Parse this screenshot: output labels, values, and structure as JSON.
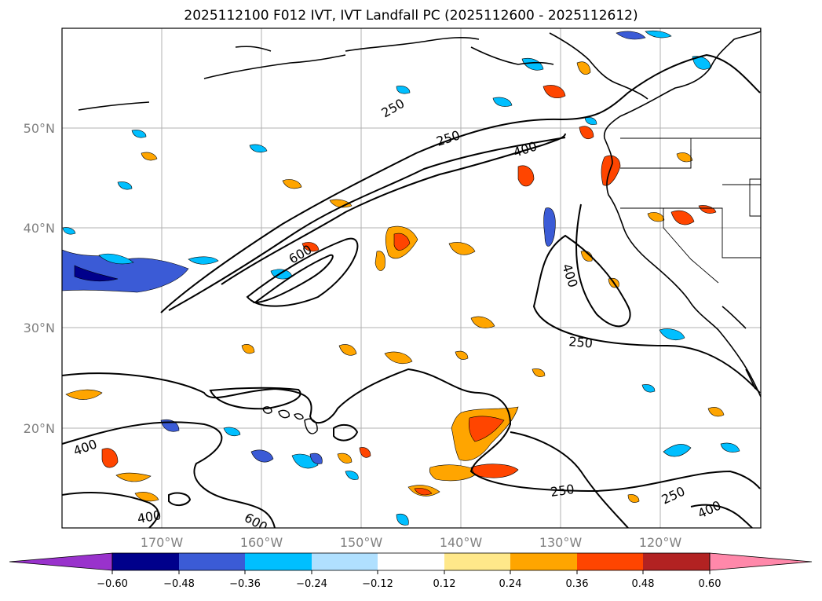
{
  "title": "2025112100 F012 IVT, IVT Landfall PC (2025112600 - 2025112612)",
  "map": {
    "lat_labels": [
      "50°N",
      "40°N",
      "30°N",
      "20°N"
    ],
    "lon_labels": [
      "170°W",
      "160°W",
      "150°W",
      "140°W",
      "130°W",
      "120°W"
    ],
    "contour_labels": [
      "250",
      "250",
      "400",
      "600",
      "400",
      "250",
      "400",
      "250",
      "250",
      "400",
      "400",
      "600"
    ]
  },
  "colorbar": {
    "colors": [
      "#9932cc",
      "#00008b",
      "#3b5bd6",
      "#00bfff",
      "#b0e0ff",
      "#ffffff",
      "#ffe88a",
      "#ffa500",
      "#ff4500",
      "#b22222",
      "#ff88aa"
    ],
    "ticks": [
      "−0.60",
      "−0.48",
      "−0.36",
      "−0.24",
      "−0.12",
      "0.12",
      "0.24",
      "0.36",
      "0.48",
      "0.60"
    ]
  }
}
